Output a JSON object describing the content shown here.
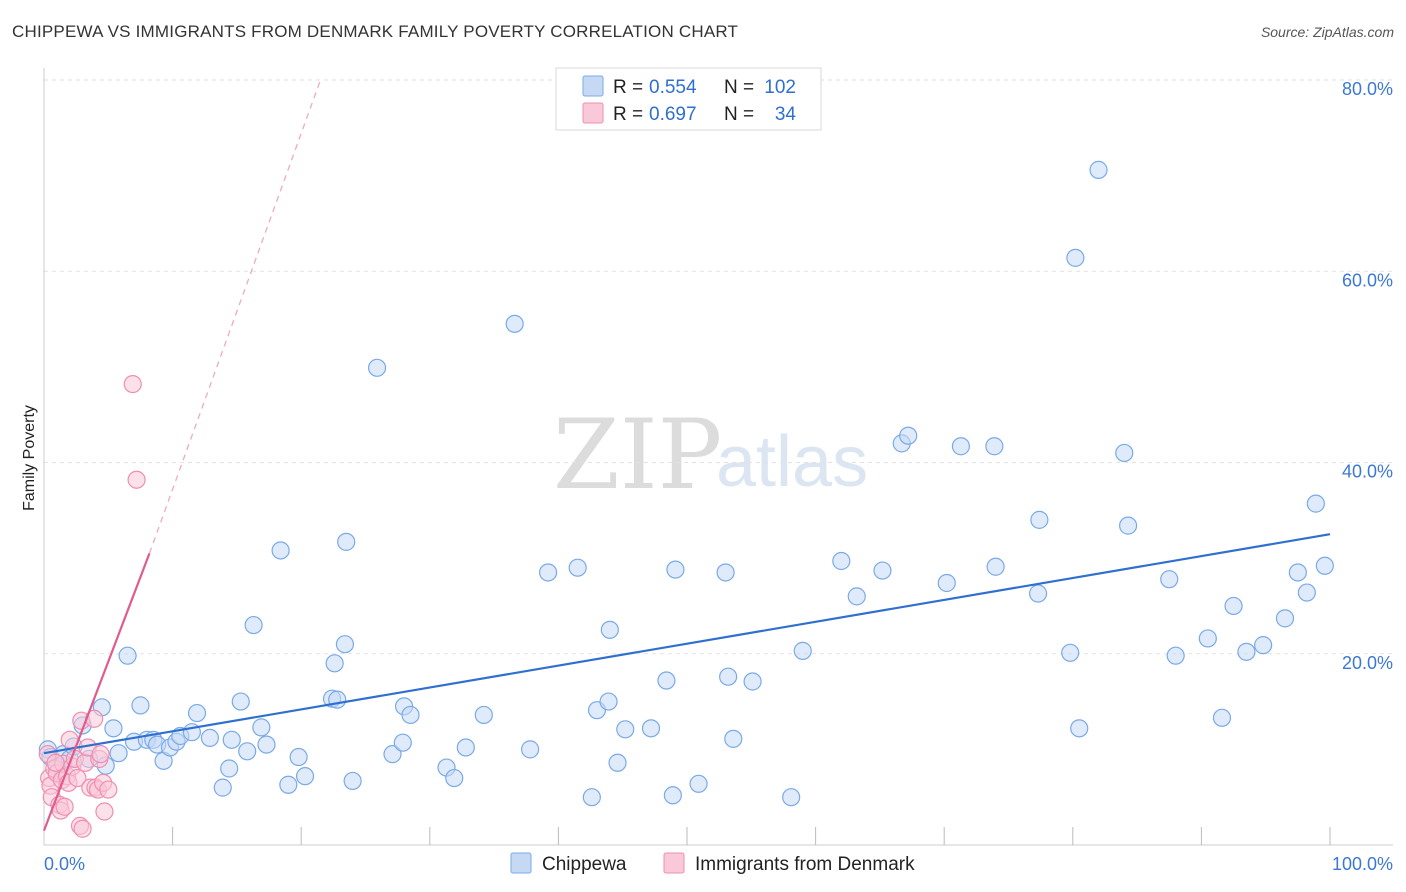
{
  "chart_data": {
    "type": "scatter",
    "title": "CHIPPEWA VS IMMIGRANTS FROM DENMARK FAMILY POVERTY CORRELATION CHART",
    "source": "Source: ZipAtlas.com",
    "xlabel": "",
    "ylabel": "Family Poverty",
    "xlim": [
      0,
      100
    ],
    "ylim": [
      0,
      80
    ],
    "x_tick_labels": [
      "0.0%",
      "100.0%"
    ],
    "y_ticks": [
      20,
      40,
      60,
      80
    ],
    "y_tick_labels": [
      "20.0%",
      "40.0%",
      "60.0%",
      "80.0%"
    ],
    "watermark": {
      "zip": "ZIP",
      "atlas": "atlas"
    },
    "legend": {
      "rows": [
        {
          "r_label": "R = ",
          "r_value": "0.554",
          "n_label": "N = ",
          "n_value": "102"
        },
        {
          "r_label": "R = ",
          "r_value": "0.697",
          "n_label": "N = ",
          "n_value": "34"
        }
      ]
    },
    "series": [
      {
        "name": "Chippewa",
        "color": "#7aaae6",
        "fill": "#c5d9f5",
        "trend_color": "#2f6fd0",
        "trend": {
          "x0": 0,
          "y0": 9.6,
          "x1": 100,
          "y1": 32.5,
          "dashed": false
        },
        "points": [
          [
            0.3,
            10.0
          ],
          [
            0.5,
            9.2
          ],
          [
            1.0,
            8.2
          ],
          [
            1.5,
            9.5
          ],
          [
            2.0,
            9.0
          ],
          [
            2.3,
            10.3
          ],
          [
            3.0,
            12.5
          ],
          [
            3.5,
            9.0
          ],
          [
            4.5,
            14.4
          ],
          [
            4.8,
            8.3
          ],
          [
            5.4,
            12.2
          ],
          [
            5.8,
            9.6
          ],
          [
            6.5,
            19.8
          ],
          [
            7.0,
            10.8
          ],
          [
            7.5,
            14.6
          ],
          [
            8.0,
            11.0
          ],
          [
            8.5,
            11.0
          ],
          [
            8.8,
            10.5
          ],
          [
            9.3,
            8.8
          ],
          [
            9.8,
            10.2
          ],
          [
            10.3,
            10.8
          ],
          [
            10.6,
            11.4
          ],
          [
            11.5,
            11.8
          ],
          [
            11.9,
            13.8
          ],
          [
            12.9,
            11.2
          ],
          [
            13.9,
            6.0
          ],
          [
            14.4,
            8.0
          ],
          [
            14.6,
            11.0
          ],
          [
            15.3,
            15.0
          ],
          [
            15.8,
            9.8
          ],
          [
            16.3,
            23.0
          ],
          [
            16.9,
            12.3
          ],
          [
            17.3,
            10.5
          ],
          [
            18.4,
            30.8
          ],
          [
            19.0,
            6.3
          ],
          [
            19.8,
            9.2
          ],
          [
            20.3,
            7.2
          ],
          [
            22.4,
            15.3
          ],
          [
            22.6,
            19.0
          ],
          [
            23.4,
            21.0
          ],
          [
            23.5,
            31.7
          ],
          [
            24.0,
            6.7
          ],
          [
            25.9,
            49.9
          ],
          [
            27.1,
            9.5
          ],
          [
            28.0,
            14.5
          ],
          [
            28.5,
            13.6
          ],
          [
            27.9,
            10.7
          ],
          [
            31.3,
            8.1
          ],
          [
            31.9,
            7.0
          ],
          [
            32.8,
            10.2
          ],
          [
            34.2,
            13.6
          ],
          [
            36.6,
            54.5
          ],
          [
            37.8,
            10.0
          ],
          [
            39.2,
            28.5
          ],
          [
            41.5,
            29.0
          ],
          [
            43.0,
            14.1
          ],
          [
            42.6,
            5.0
          ],
          [
            44.0,
            22.5
          ],
          [
            43.9,
            15.0
          ],
          [
            44.6,
            8.6
          ],
          [
            45.2,
            12.1
          ],
          [
            47.2,
            12.2
          ],
          [
            48.4,
            17.2
          ],
          [
            48.9,
            5.2
          ],
          [
            49.1,
            28.8
          ],
          [
            50.9,
            6.4
          ],
          [
            53.0,
            28.5
          ],
          [
            53.2,
            17.6
          ],
          [
            53.6,
            11.1
          ],
          [
            55.1,
            17.1
          ],
          [
            58.1,
            5.0
          ],
          [
            59.0,
            20.3
          ],
          [
            62.0,
            29.7
          ],
          [
            63.2,
            26.0
          ],
          [
            65.2,
            28.7
          ],
          [
            66.7,
            42.0
          ],
          [
            67.2,
            42.8
          ],
          [
            70.2,
            27.4
          ],
          [
            71.3,
            41.7
          ],
          [
            73.9,
            41.7
          ],
          [
            74.0,
            29.1
          ],
          [
            77.3,
            26.3
          ],
          [
            77.4,
            34.0
          ],
          [
            79.8,
            20.1
          ],
          [
            80.2,
            61.4
          ],
          [
            80.5,
            12.2
          ],
          [
            82.0,
            70.6
          ],
          [
            84.0,
            41.0
          ],
          [
            84.3,
            33.4
          ],
          [
            87.5,
            27.8
          ],
          [
            88.0,
            19.8
          ],
          [
            90.5,
            21.6
          ],
          [
            91.6,
            13.3
          ],
          [
            92.5,
            25.0
          ],
          [
            93.5,
            20.2
          ],
          [
            94.8,
            20.9
          ],
          [
            96.5,
            23.7
          ],
          [
            97.5,
            28.5
          ],
          [
            98.2,
            26.4
          ],
          [
            98.9,
            35.7
          ],
          [
            99.6,
            29.2
          ],
          [
            22.8,
            15.2
          ]
        ]
      },
      {
        "name": "Immigrants from Denmark",
        "color": "#ee8fb0",
        "fill": "#f9c9d9",
        "trend_color": "#e05c8c",
        "trend": {
          "x0": 0,
          "y0": 1.5,
          "x1": 8.2,
          "y1": 30.5,
          "x_ext": 21.5,
          "y_ext": 80,
          "dashed_ext": true
        },
        "points": [
          [
            0.3,
            9.5
          ],
          [
            0.4,
            7.0
          ],
          [
            0.5,
            6.2
          ],
          [
            0.6,
            5.0
          ],
          [
            0.8,
            8.0
          ],
          [
            1.0,
            7.5
          ],
          [
            1.2,
            4.2
          ],
          [
            1.3,
            3.6
          ],
          [
            1.4,
            6.8
          ],
          [
            1.5,
            8.5
          ],
          [
            1.6,
            4.0
          ],
          [
            1.8,
            7.2
          ],
          [
            1.9,
            6.5
          ],
          [
            2.0,
            11.0
          ],
          [
            2.2,
            8.2
          ],
          [
            2.4,
            9.0
          ],
          [
            2.6,
            7.0
          ],
          [
            2.8,
            2.0
          ],
          [
            2.9,
            13.0
          ],
          [
            3.0,
            1.7
          ],
          [
            3.2,
            8.6
          ],
          [
            3.4,
            10.2
          ],
          [
            3.6,
            6.0
          ],
          [
            3.9,
            13.2
          ],
          [
            4.0,
            6.0
          ],
          [
            4.2,
            5.8
          ],
          [
            4.3,
            9.0
          ],
          [
            4.4,
            9.5
          ],
          [
            4.6,
            6.5
          ],
          [
            5.0,
            5.8
          ],
          [
            4.7,
            3.5
          ],
          [
            6.9,
            48.2
          ],
          [
            7.2,
            38.2
          ],
          [
            0.9,
            8.6
          ]
        ]
      }
    ]
  }
}
